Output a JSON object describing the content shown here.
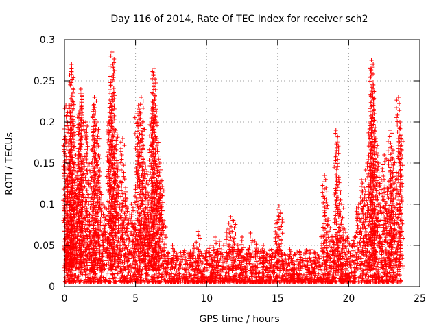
{
  "chart_data": {
    "type": "scatter",
    "title": "Day 116 of 2014, Rate Of TEC Index for receiver sch2",
    "xlabel": "GPS time / hours",
    "ylabel": "ROTI / TECUs",
    "xlim": [
      0,
      25
    ],
    "ylim": [
      0,
      0.3
    ],
    "x_ticks": [
      0,
      5,
      10,
      15,
      20,
      25
    ],
    "y_ticks": [
      0,
      0.05,
      0.1,
      0.15,
      0.2,
      0.25,
      0.3
    ],
    "x_tick_labels": [
      "0",
      "5",
      "10",
      "15",
      "20",
      "25"
    ],
    "y_tick_labels": [
      "0",
      "0.05",
      "0.1",
      "0.15",
      "0.2",
      "0.25",
      "0.3"
    ],
    "grid": true,
    "marker": "+",
    "series": [
      {
        "color": "#ff0000",
        "points": [
          [
            0.05,
            0.18
          ],
          [
            0.1,
            0.22
          ],
          [
            0.15,
            0.12
          ],
          [
            0.2,
            0.08
          ],
          [
            0.25,
            0.05
          ],
          [
            0.3,
            0.22
          ],
          [
            0.35,
            0.15
          ],
          [
            0.45,
            0.2
          ],
          [
            0.5,
            0.27
          ],
          [
            0.5,
            0.265
          ],
          [
            0.55,
            0.225
          ],
          [
            0.6,
            0.13
          ],
          [
            0.65,
            0.1
          ],
          [
            0.8,
            0.16
          ],
          [
            0.9,
            0.12
          ],
          [
            1.05,
            0.21
          ],
          [
            1.1,
            0.235
          ],
          [
            1.15,
            0.24
          ],
          [
            1.2,
            0.22
          ],
          [
            1.3,
            0.15
          ],
          [
            1.5,
            0.2
          ],
          [
            1.6,
            0.195
          ],
          [
            1.7,
            0.1
          ],
          [
            1.9,
            0.15
          ],
          [
            2.05,
            0.22
          ],
          [
            2.1,
            0.23
          ],
          [
            2.2,
            0.19
          ],
          [
            2.3,
            0.2
          ],
          [
            2.4,
            0.16
          ],
          [
            2.5,
            0.12
          ],
          [
            2.7,
            0.1
          ],
          [
            2.9,
            0.06
          ],
          [
            3.1,
            0.2
          ],
          [
            3.2,
            0.235
          ],
          [
            3.3,
            0.22
          ],
          [
            3.35,
            0.285
          ],
          [
            3.4,
            0.27
          ],
          [
            3.5,
            0.17
          ],
          [
            3.6,
            0.19
          ],
          [
            3.7,
            0.15
          ],
          [
            3.9,
            0.1
          ],
          [
            4.1,
            0.18
          ],
          [
            4.3,
            0.12
          ],
          [
            4.5,
            0.08
          ],
          [
            4.7,
            0.1
          ],
          [
            4.9,
            0.08
          ],
          [
            5.1,
            0.21
          ],
          [
            5.2,
            0.22
          ],
          [
            5.3,
            0.17
          ],
          [
            5.4,
            0.23
          ],
          [
            5.5,
            0.2
          ],
          [
            5.6,
            0.15
          ],
          [
            5.7,
            0.12
          ],
          [
            5.8,
            0.14
          ],
          [
            5.9,
            0.1
          ],
          [
            6.1,
            0.2
          ],
          [
            6.2,
            0.225
          ],
          [
            6.25,
            0.26
          ],
          [
            6.3,
            0.265
          ],
          [
            6.4,
            0.22
          ],
          [
            6.5,
            0.18
          ],
          [
            6.6,
            0.12
          ],
          [
            6.7,
            0.15
          ],
          [
            6.8,
            0.1
          ],
          [
            7.0,
            0.08
          ],
          [
            7.3,
            0.04
          ],
          [
            7.6,
            0.05
          ],
          [
            7.9,
            0.04
          ],
          [
            8.2,
            0.03
          ],
          [
            8.5,
            0.035
          ],
          [
            8.8,
            0.04
          ],
          [
            9.1,
            0.05
          ],
          [
            9.4,
            0.067
          ],
          [
            9.7,
            0.03
          ],
          [
            10.0,
            0.04
          ],
          [
            10.3,
            0.05
          ],
          [
            10.6,
            0.06
          ],
          [
            10.9,
            0.055
          ],
          [
            11.2,
            0.05
          ],
          [
            11.5,
            0.07
          ],
          [
            11.7,
            0.085
          ],
          [
            11.9,
            0.08
          ],
          [
            12.2,
            0.05
          ],
          [
            12.5,
            0.06
          ],
          [
            12.8,
            0.04
          ],
          [
            13.1,
            0.065
          ],
          [
            13.4,
            0.055
          ],
          [
            13.7,
            0.04
          ],
          [
            14.0,
            0.05
          ],
          [
            14.3,
            0.04
          ],
          [
            14.6,
            0.045
          ],
          [
            14.9,
            0.08
          ],
          [
            15.1,
            0.098
          ],
          [
            15.2,
            0.09
          ],
          [
            15.4,
            0.03
          ],
          [
            15.7,
            0.025
          ],
          [
            16.0,
            0.03
          ],
          [
            16.3,
            0.02
          ],
          [
            16.6,
            0.03
          ],
          [
            16.9,
            0.025
          ],
          [
            17.2,
            0.03
          ],
          [
            17.5,
            0.035
          ],
          [
            17.8,
            0.03
          ],
          [
            18.1,
            0.05
          ],
          [
            18.3,
            0.135
          ],
          [
            18.4,
            0.12
          ],
          [
            18.6,
            0.08
          ],
          [
            18.9,
            0.06
          ],
          [
            19.1,
            0.19
          ],
          [
            19.2,
            0.175
          ],
          [
            19.3,
            0.13
          ],
          [
            19.5,
            0.1
          ],
          [
            19.7,
            0.07
          ],
          [
            19.9,
            0.06
          ],
          [
            20.1,
            0.04
          ],
          [
            20.4,
            0.06
          ],
          [
            20.7,
            0.1
          ],
          [
            20.9,
            0.13
          ],
          [
            21.1,
            0.12
          ],
          [
            21.3,
            0.15
          ],
          [
            21.5,
            0.2
          ],
          [
            21.6,
            0.275
          ],
          [
            21.65,
            0.27
          ],
          [
            21.7,
            0.235
          ],
          [
            21.8,
            0.21
          ],
          [
            21.9,
            0.18
          ],
          [
            22.1,
            0.15
          ],
          [
            22.3,
            0.13
          ],
          [
            22.5,
            0.16
          ],
          [
            22.7,
            0.12
          ],
          [
            22.9,
            0.19
          ],
          [
            23.0,
            0.17
          ],
          [
            23.1,
            0.155
          ],
          [
            23.3,
            0.13
          ],
          [
            23.5,
            0.23
          ],
          [
            23.6,
            0.2
          ],
          [
            23.7,
            0.18
          ]
        ]
      }
    ]
  }
}
